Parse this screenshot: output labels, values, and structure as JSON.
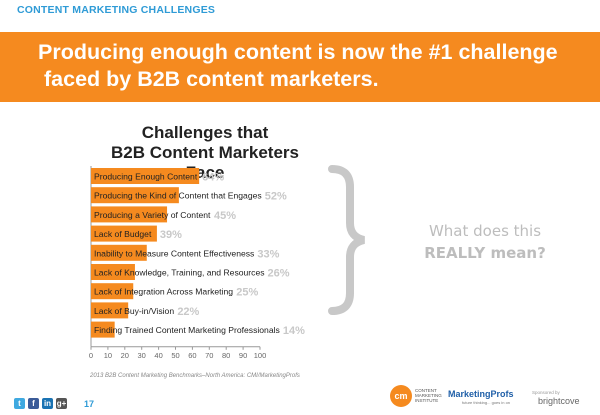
{
  "header": {
    "section_title": "CONTENT MARKETING CHALLENGES",
    "headline_line1": "Producing enough content is now the #1 challenge",
    "headline_line2": "faced by B2B content marketers."
  },
  "chart_data": {
    "type": "bar",
    "orientation": "horizontal",
    "title_line1": "Challenges that",
    "title_line2": "B2B Content Marketers Face",
    "categories": [
      "Producing Enough Content",
      "Producing the Kind of Content that Engages",
      "Producing a Variety of Content",
      "Lack of Budget",
      "Inability to Measure Content Effectiveness",
      "Lack of Knowledge, Training, and Resources",
      "Lack of Integration Across Marketing",
      "Lack of Buy-in/Vision",
      "Finding Trained Content Marketing Professionals"
    ],
    "values": [
      64,
      52,
      45,
      39,
      33,
      26,
      25,
      22,
      14
    ],
    "value_labels": [
      "64%",
      "52%",
      "45%",
      "39%",
      "33%",
      "26%",
      "25%",
      "22%",
      "14%"
    ],
    "xlim": [
      0,
      100
    ],
    "xticks": [
      0,
      10,
      20,
      30,
      40,
      50,
      60,
      70,
      80,
      90,
      100
    ],
    "bar_color": "#f58a1f",
    "label_color": "#c8c8c8",
    "grid": false
  },
  "callout": {
    "line1": "What does this",
    "line2": "REALLY mean?"
  },
  "source": "2013 B2B Content Marketing Benchmarks–North America: CMI/MarketingProfs",
  "footer": {
    "page_number": "17",
    "social_icons": [
      "twitter-icon",
      "facebook-icon",
      "linkedin-icon",
      "googleplus-icon"
    ],
    "social_glyphs": [
      "t",
      "f",
      "in",
      "g+"
    ],
    "cmi_logo_text": "cm",
    "cmi_label": "CONTENT MARKETING INSTITUTE",
    "marketingprofs": "MarketingProfs",
    "marketingprofs_tagline": "future thinking... goes in on",
    "sponsored_by": "Sponsored by",
    "brightcove": "brightcove"
  },
  "colors": {
    "accent_blue": "#2f9bd6",
    "banner_orange": "#f58a1f",
    "brace_gray": "#c8c8c8"
  }
}
